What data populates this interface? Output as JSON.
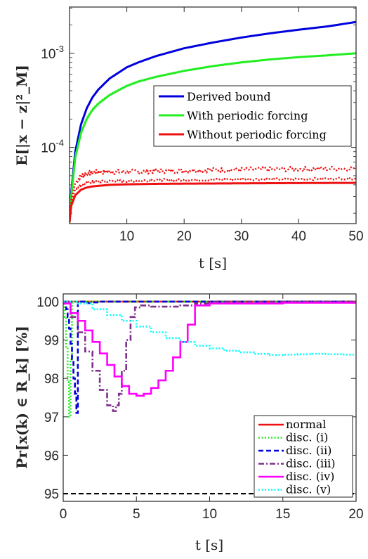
{
  "chart_data": [
    {
      "type": "line",
      "yscale": "log",
      "xlabel": "t [s]",
      "ylabel": "E[|x − z|²_M]",
      "xlim": [
        0,
        50
      ],
      "ylim": [
        1.55e-05,
        0.0031
      ],
      "xticks": [
        "10",
        "20",
        "30",
        "40",
        "50"
      ],
      "yticks": [
        {
          "value": 0.0001,
          "base": "10",
          "exp": "-4"
        },
        {
          "value": 0.001,
          "base": "10",
          "exp": "-3"
        }
      ],
      "legend_position": "center-right",
      "legend": [
        {
          "label": "Derived bound",
          "color": "#0000dd"
        },
        {
          "label": "With periodic forcing",
          "color": "#22ee22"
        },
        {
          "label": "Without periodic forcing",
          "color": "#ee1111"
        }
      ],
      "series": [
        {
          "name": "Derived bound",
          "color": "#0000dd",
          "style": "solid",
          "x": [
            0,
            0.3,
            1,
            2,
            3,
            4,
            5,
            7,
            10,
            12,
            15,
            20,
            25,
            30,
            35,
            40,
            45,
            50
          ],
          "y": [
            1.6e-05,
            3.3e-05,
            9e-05,
            0.000175,
            0.00026,
            0.00034,
            0.00041,
            0.00054,
            0.00071,
            0.0008,
            0.00093,
            0.00113,
            0.0013,
            0.00147,
            0.00163,
            0.00178,
            0.00193,
            0.00215
          ]
        },
        {
          "name": "With periodic forcing",
          "color": "#22ee22",
          "style": "solid",
          "x": [
            0,
            0.3,
            1,
            2,
            3,
            4,
            5,
            7,
            10,
            12,
            15,
            20,
            25,
            30,
            35,
            40,
            45,
            50
          ],
          "y": [
            1.6e-05,
            3e-05,
            7.8e-05,
            0.000142,
            0.0002,
            0.00025,
            0.00029,
            0.00036,
            0.00045,
            0.0005,
            0.00056,
            0.00065,
            0.00073,
            0.0008,
            0.00086,
            0.00091,
            0.00095,
            0.001
          ]
        },
        {
          "name": "With periodic forcing (simulated)",
          "color": "#22ee22",
          "style": "dotted",
          "x": [
            0,
            0.3,
            1,
            2,
            3,
            4,
            5,
            7,
            10,
            12,
            15,
            20,
            25,
            30,
            35,
            40,
            45,
            50
          ],
          "y": [
            1.6e-05,
            3.1e-05,
            8e-05,
            0.000147,
            0.000205,
            0.000255,
            0.000295,
            0.000365,
            0.000455,
            0.000505,
            0.000565,
            0.000655,
            0.000735,
            0.000805,
            0.000862,
            0.00091,
            0.000955,
            0.001
          ]
        },
        {
          "name": "Without periodic forcing",
          "color": "#ee1111",
          "style": "solid",
          "x": [
            0,
            0.3,
            1,
            2,
            3,
            4,
            5,
            7,
            10,
            15,
            20,
            30,
            40,
            50
          ],
          "y": [
            1.6e-05,
            2.4e-05,
            3.1e-05,
            3.55e-05,
            3.75e-05,
            3.85e-05,
            3.9e-05,
            4e-05,
            4.05e-05,
            4.1e-05,
            4.12e-05,
            4.15e-05,
            4.18e-05,
            4.2e-05
          ]
        },
        {
          "name": "Without periodic forcing (simulated, upper)",
          "color": "#ee1111",
          "style": "dotted",
          "noise": 0.06,
          "x": [
            0,
            0.3,
            1,
            2,
            3,
            4,
            5,
            7,
            10,
            15,
            20,
            30,
            40,
            50
          ],
          "y": [
            1.6e-05,
            2.8e-05,
            4.2e-05,
            5e-05,
            5.3e-05,
            5.4e-05,
            5.5e-05,
            5.5e-05,
            5.5e-05,
            5.6e-05,
            5.7e-05,
            5.8e-05,
            5.9e-05,
            6e-05
          ]
        },
        {
          "name": "Without periodic forcing (simulated, lower)",
          "color": "#ee1111",
          "style": "dotted",
          "noise": 0.03,
          "x": [
            0,
            0.3,
            1,
            2,
            3,
            4,
            5,
            7,
            10,
            15,
            20,
            30,
            40,
            50
          ],
          "y": [
            1.6e-05,
            2.6e-05,
            3.6e-05,
            4e-05,
            4.2e-05,
            4.3e-05,
            4.3e-05,
            4.4e-05,
            4.4e-05,
            4.5e-05,
            4.5e-05,
            4.6e-05,
            4.6e-05,
            4.7e-05
          ]
        }
      ]
    },
    {
      "type": "line",
      "xlabel": "t [s]",
      "ylabel": "Pr[x(k) ∈ R_k] [%]",
      "xlim": [
        0,
        20
      ],
      "ylim": [
        94.8,
        100.2
      ],
      "xticks": [
        0,
        5,
        10,
        15,
        20
      ],
      "yticks": [
        95,
        96,
        97,
        98,
        99,
        100
      ],
      "legend_position": "bottom-right",
      "legend": [
        {
          "label": "normal",
          "color": "#ee1111",
          "style": "solid"
        },
        {
          "label": "disc. (i)",
          "color": "#22ee22",
          "style": "dotted"
        },
        {
          "label": "disc. (ii)",
          "color": "#0000dd",
          "style": "dashed"
        },
        {
          "label": "disc. (iii)",
          "color": "#7e2f8e",
          "style": "dashdot"
        },
        {
          "label": "disc. (iv)",
          "color": "#ff00ff",
          "style": "solid"
        },
        {
          "label": "disc. (v)",
          "color": "#00ffff",
          "style": "dotted"
        }
      ],
      "series": [
        {
          "name": "threshold",
          "color": "#000000",
          "style": "dashed",
          "step": false,
          "x": [
            0,
            20
          ],
          "y": [
            95,
            95
          ]
        },
        {
          "name": "normal",
          "color": "#ee1111",
          "style": "solid",
          "step": false,
          "x": [
            0,
            20
          ],
          "y": [
            100,
            100
          ]
        },
        {
          "name": "disc. (i)",
          "color": "#22ee22",
          "style": "dotted",
          "step": true,
          "x": [
            0,
            0.1,
            0.2,
            0.3,
            0.4,
            0.5,
            0.6,
            20
          ],
          "y": [
            100,
            99.6,
            98.8,
            97.9,
            97.0,
            98.5,
            100,
            100
          ]
        },
        {
          "name": "disc. (ii)",
          "color": "#0000dd",
          "style": "dashed",
          "step": true,
          "x": [
            0,
            0.1,
            0.2,
            0.3,
            0.4,
            0.5,
            0.6,
            0.7,
            0.8,
            0.9,
            1.0,
            1.5,
            2.0,
            2.5,
            20
          ],
          "y": [
            100,
            99.95,
            99.8,
            99.6,
            99.3,
            98.9,
            98.5,
            98.0,
            97.6,
            97.1,
            100,
            99.96,
            99.98,
            100,
            100
          ]
        },
        {
          "name": "disc. (iii)",
          "color": "#7e2f8e",
          "style": "dashdot",
          "step": true,
          "x": [
            0,
            0.5,
            1.0,
            1.5,
            2.0,
            2.5,
            3.0,
            3.4,
            3.6,
            3.8,
            4.0,
            4.3,
            4.6,
            4.9,
            5.3,
            6,
            8,
            9,
            10,
            20
          ],
          "y": [
            100,
            99.6,
            99.2,
            98.7,
            98.2,
            97.7,
            97.3,
            97.15,
            97.3,
            97.6,
            98.2,
            99.0,
            99.6,
            99.85,
            99.9,
            99.87,
            99.9,
            99.95,
            100,
            100
          ]
        },
        {
          "name": "disc. (iv)",
          "color": "#ff00ff",
          "style": "solid",
          "step": true,
          "x": [
            0,
            0.5,
            1.0,
            1.5,
            2.0,
            2.5,
            3.0,
            3.5,
            4.0,
            4.5,
            5.0,
            5.5,
            6.0,
            6.5,
            7.0,
            7.5,
            8.0,
            8.5,
            9.0,
            10,
            15,
            20
          ],
          "y": [
            99.95,
            99.7,
            99.5,
            99.25,
            98.95,
            98.65,
            98.35,
            98.05,
            97.8,
            97.6,
            97.55,
            97.6,
            97.75,
            97.95,
            98.2,
            98.55,
            98.95,
            99.4,
            99.9,
            99.95,
            99.97,
            99.99
          ]
        },
        {
          "name": "disc. (v)",
          "color": "#00ffff",
          "style": "dotted",
          "step": true,
          "x": [
            0,
            1,
            2,
            3,
            4,
            5,
            6,
            7,
            8,
            9,
            10,
            11,
            12,
            13,
            14,
            15,
            16,
            17,
            18,
            19,
            20
          ],
          "y": [
            100,
            99.95,
            99.8,
            99.65,
            99.5,
            99.35,
            99.2,
            99.05,
            98.95,
            98.85,
            98.78,
            98.72,
            98.68,
            98.64,
            98.61,
            98.62,
            98.63,
            98.64,
            98.63,
            98.62,
            98.62
          ]
        }
      ]
    }
  ]
}
